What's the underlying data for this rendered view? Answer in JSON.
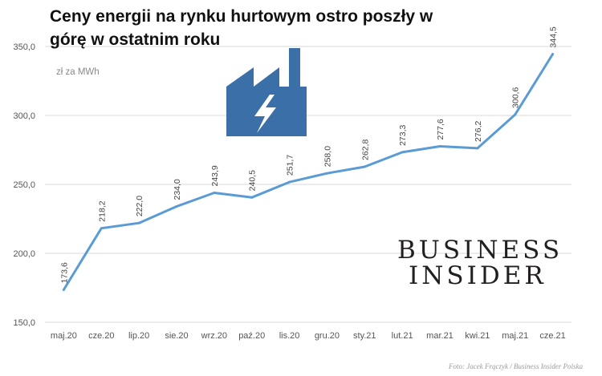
{
  "title": "Ceny energii na rynku hurtowym ostro poszły w górę w ostatnim roku",
  "unit_label": "zł za MWh",
  "brand": {
    "line1": "BUSINESS",
    "line2": "INSIDER"
  },
  "credit": "Foto: Jacek Frączyk / Business Insider Polska",
  "icon_name": "factory-lightning-icon",
  "colors": {
    "line": "#5b9bd5",
    "icon": "#3a6fa8",
    "grid": "#d9d9d9"
  },
  "chart_data": {
    "type": "line",
    "title": "Ceny energii na rynku hurtowym ostro poszły w górę w ostatnim roku",
    "xlabel": "",
    "ylabel": "zł za MWh",
    "categories": [
      "maj.20",
      "cze.20",
      "lip.20",
      "sie.20",
      "wrz.20",
      "paź.20",
      "lis.20",
      "gru.20",
      "sty.21",
      "lut.21",
      "mar.21",
      "kwi.21",
      "maj.21",
      "cze.21"
    ],
    "values": [
      173.6,
      218.2,
      222.0,
      234.0,
      243.9,
      240.5,
      251.7,
      258.0,
      262.8,
      273.3,
      277.6,
      276.2,
      300.6,
      344.5
    ],
    "value_labels": [
      "173,6",
      "218,2",
      "222,0",
      "234,0",
      "243,9",
      "240,5",
      "251,7",
      "258,0",
      "262,8",
      "273,3",
      "277,6",
      "276,2",
      "300,6",
      "344,5"
    ],
    "yticks": [
      150,
      200,
      250,
      300,
      350
    ],
    "ytick_labels": [
      "150,0",
      "200,0",
      "250,0",
      "300,0",
      "350,0"
    ],
    "ylim": [
      150,
      350
    ],
    "grid": true,
    "legend": "none"
  }
}
